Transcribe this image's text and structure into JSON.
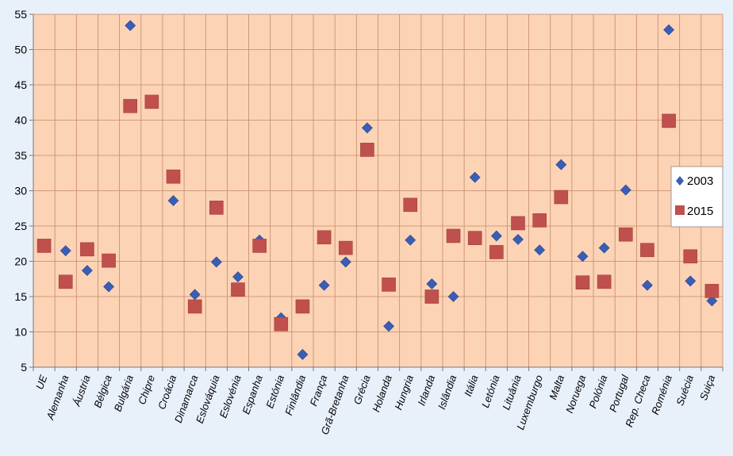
{
  "chart_data": {
    "type": "scatter",
    "title": "",
    "xlabel": "",
    "ylabel": "",
    "ylim": [
      5,
      55
    ],
    "yticks": [
      5,
      10,
      15,
      20,
      25,
      30,
      35,
      40,
      45,
      50,
      55
    ],
    "grid": true,
    "legend_position": "right",
    "categories": [
      "UE",
      "Alemanha",
      "Áustria",
      "Bélgica",
      "Bulgária",
      "Chipre",
      "Croácia",
      "Dinamarca",
      "Eslováquia",
      "Eslovénia",
      "Espanha",
      "Estónia",
      "Finlândia",
      "França",
      "Grã-Bretanha",
      "Grécia",
      "Holanda",
      "Hungria",
      "Irlanda",
      "Islândia",
      "Itália",
      "Letónia",
      "Lituânia",
      "Luxemburgo",
      "Malta",
      "Noruega",
      "Polónia",
      "Portugal",
      "Rep. Checa",
      "Roménia",
      "Suécia",
      "Suiça"
    ],
    "series": [
      {
        "name": "2003",
        "marker": "diamond",
        "color": "#3a5db5",
        "values": [
          null,
          21.5,
          18.7,
          16.4,
          53.4,
          null,
          28.6,
          15.3,
          19.9,
          17.8,
          23.0,
          12.0,
          6.8,
          16.6,
          19.9,
          38.9,
          10.8,
          23.0,
          16.8,
          15.0,
          31.9,
          23.6,
          23.1,
          21.6,
          33.7,
          20.7,
          21.9,
          30.1,
          16.6,
          52.8,
          17.2,
          14.4
        ]
      },
      {
        "name": "2015",
        "marker": "square",
        "color": "#c0504d",
        "values": [
          22.2,
          17.1,
          21.7,
          20.1,
          42.0,
          42.6,
          32.0,
          13.6,
          27.6,
          16.0,
          22.2,
          11.1,
          13.6,
          23.4,
          21.9,
          35.8,
          16.7,
          28.0,
          15.0,
          23.6,
          23.3,
          21.3,
          25.4,
          25.8,
          29.1,
          17.0,
          17.1,
          23.8,
          21.6,
          39.9,
          20.7,
          15.8
        ]
      }
    ]
  },
  "colors": {
    "background": "#e8f0fa",
    "plot_area": "#fcd3b5",
    "gridline": "#c48a6a"
  }
}
